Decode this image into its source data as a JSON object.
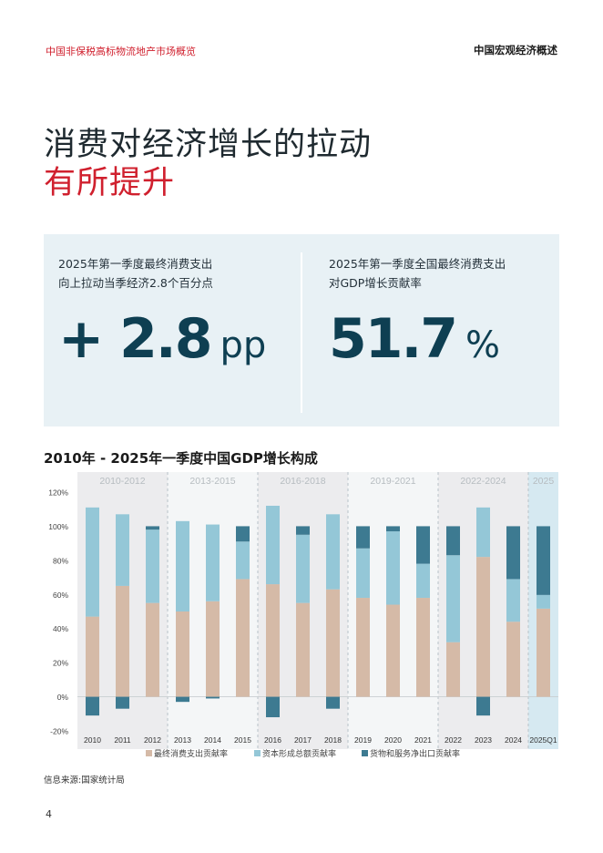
{
  "header": {
    "left": "中国非保税高标物流地产市场概览",
    "right": "中国宏观经济概述"
  },
  "title": {
    "line1": "消费对经济增长的拉动",
    "line2": "有所提升"
  },
  "stats": [
    {
      "caption_line1": "2025年第一季度最终消费支出",
      "caption_line2": "向上拉动当季经济2.8个百分点",
      "value": "+ 2.8",
      "unit": "pp"
    },
    {
      "caption_line1": "2025年第一季度全国最终消费支出",
      "caption_line2": "对GDP增长贡献率",
      "value": "51.7",
      "unit": "%"
    }
  ],
  "chart_title": "2010年 - 2025年一季度中国GDP增长构成",
  "source": "信息来源:国家统计局",
  "page_number": "4",
  "colors": {
    "consumption": "#d5baa7",
    "capital": "#94c7d7",
    "net_exports": "#3d7a91",
    "band_shaded": "#ececee",
    "band_light": "#f4f6f7",
    "band_highlight": "#d6e9f1"
  },
  "chart_data": {
    "type": "bar",
    "stacked": true,
    "categories": [
      "2010",
      "2011",
      "2012",
      "2013",
      "2014",
      "2015",
      "2016",
      "2017",
      "2018",
      "2019",
      "2020",
      "2021",
      "2022",
      "2023",
      "2024",
      "2025Q1"
    ],
    "series": [
      {
        "name": "最终消费支出贡献率",
        "values": [
          47,
          65,
          55,
          50,
          56,
          69,
          66,
          55,
          63,
          58,
          54,
          58,
          32,
          82,
          44,
          51.7
        ]
      },
      {
        "name": "资本形成总额贡献率",
        "values": [
          64,
          42,
          43,
          53,
          45,
          22,
          46,
          40,
          44,
          29,
          43,
          20,
          51,
          29,
          25,
          8
        ]
      },
      {
        "name": "货物和服务净出口贡献率",
        "values": [
          -11,
          -7,
          2,
          -3,
          -1,
          9,
          -12,
          5,
          -7,
          13,
          3,
          22,
          17,
          -11,
          31,
          40.3
        ]
      }
    ],
    "periods": [
      {
        "label": "2010-2012",
        "start": 0,
        "end": 2
      },
      {
        "label": "2013-2015",
        "start": 3,
        "end": 5
      },
      {
        "label": "2016-2018",
        "start": 6,
        "end": 8
      },
      {
        "label": "2019-2021",
        "start": 9,
        "end": 11
      },
      {
        "label": "2022-2024",
        "start": 12,
        "end": 14
      },
      {
        "label": "2025",
        "start": 15,
        "end": 15
      }
    ],
    "ylim": [
      -20,
      120
    ],
    "yticks": [
      -20,
      0,
      20,
      40,
      60,
      80,
      100,
      120
    ],
    "ytick_labels": [
      "-20%",
      "0%",
      "20%",
      "40%",
      "60%",
      "80%",
      "100%",
      "120%"
    ],
    "legend_position": "bottom",
    "xlabel": "",
    "ylabel": ""
  }
}
